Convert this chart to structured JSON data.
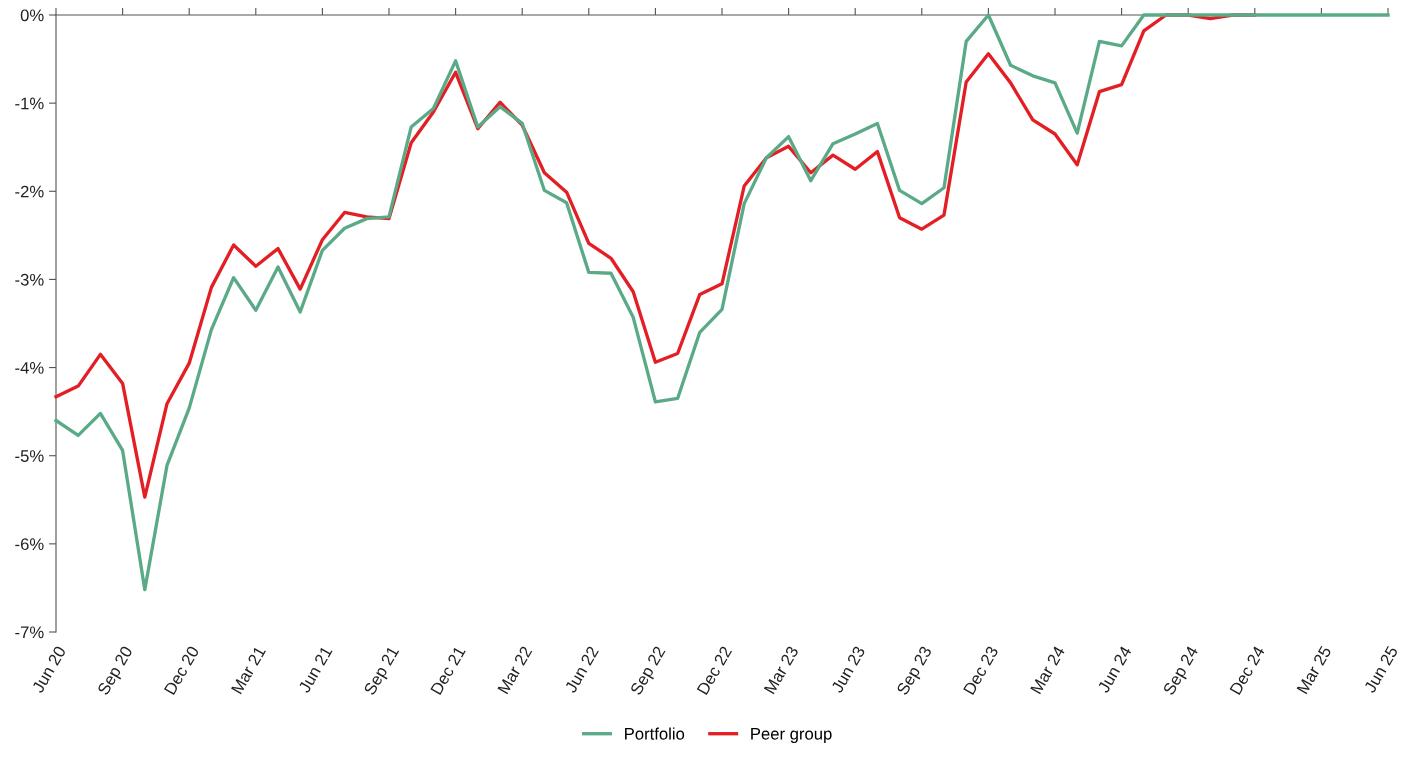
{
  "chart_data": {
    "type": "line",
    "x": [
      "2020-06",
      "2020-07",
      "2020-08",
      "2020-09",
      "2020-10",
      "2020-11",
      "2020-12",
      "2021-01",
      "2021-02",
      "2021-03",
      "2021-04",
      "2021-05",
      "2021-06",
      "2021-07",
      "2021-08",
      "2021-09",
      "2021-10",
      "2021-11",
      "2021-12",
      "2022-01",
      "2022-02",
      "2022-03",
      "2022-04",
      "2022-05",
      "2022-06",
      "2022-07",
      "2022-08",
      "2022-09",
      "2022-10",
      "2022-11",
      "2022-12",
      "2023-01",
      "2023-02",
      "2023-03",
      "2023-04",
      "2023-05",
      "2023-06",
      "2023-07",
      "2023-08",
      "2023-09",
      "2023-10",
      "2023-11",
      "2023-12",
      "2024-01",
      "2024-02",
      "2024-03",
      "2024-04",
      "2024-05",
      "2024-06",
      "2024-07",
      "2024-08",
      "2024-09",
      "2024-10",
      "2024-11",
      "2024-12",
      "2025-01",
      "2025-02",
      "2025-03",
      "2025-04",
      "2025-05",
      "2025-06"
    ],
    "series": [
      {
        "name": "Portfolio",
        "color": "#5aaa88",
        "values": [
          -4.6,
          -4.77,
          -4.52,
          -4.94,
          -6.52,
          -5.11,
          -4.46,
          -3.57,
          -2.98,
          -3.35,
          -2.86,
          -3.37,
          -2.67,
          -2.42,
          -2.31,
          -2.29,
          -1.27,
          -1.06,
          -0.52,
          -1.27,
          -1.04,
          -1.23,
          -1.99,
          -2.13,
          -2.92,
          -2.93,
          -3.43,
          -4.39,
          -4.35,
          -3.6,
          -3.34,
          -2.14,
          -1.62,
          -1.38,
          -1.88,
          -1.46,
          -1.35,
          -1.23,
          -1.99,
          -2.14,
          -1.96,
          -0.3,
          0,
          -0.57,
          -0.69,
          -0.77,
          -1.34,
          -0.3,
          -0.35,
          0,
          0,
          0,
          0,
          0,
          0,
          0,
          0,
          0,
          0,
          0,
          0
        ]
      },
      {
        "name": "Peer group",
        "color": "#e31e24",
        "values": [
          -4.33,
          -4.21,
          -3.85,
          -4.18,
          -5.47,
          -4.41,
          -3.95,
          -3.09,
          -2.61,
          -2.85,
          -2.65,
          -3.11,
          -2.55,
          -2.24,
          -2.29,
          -2.31,
          -1.45,
          -1.1,
          -0.65,
          -1.29,
          -0.99,
          -1.25,
          -1.79,
          -2.01,
          -2.59,
          -2.76,
          -3.14,
          -3.94,
          -3.84,
          -3.17,
          -3.05,
          -1.94,
          -1.62,
          -1.49,
          -1.79,
          -1.59,
          -1.75,
          -1.55,
          -2.3,
          -2.43,
          -2.27,
          -0.76,
          -0.44,
          -0.77,
          -1.19,
          -1.35,
          -1.7,
          -0.87,
          -0.79,
          -0.18,
          0,
          0,
          -0.04,
          0,
          0,
          null,
          null,
          null,
          null,
          null,
          null
        ]
      }
    ],
    "xlim": [
      "2020-06",
      "2025-06"
    ],
    "xticks": [
      {
        "value": "2020-06",
        "label": "Jun 20"
      },
      {
        "value": "2020-09",
        "label": "Sep 20"
      },
      {
        "value": "2020-12",
        "label": "Dec 20"
      },
      {
        "value": "2021-03",
        "label": "Mar 21"
      },
      {
        "value": "2021-06",
        "label": "Jun 21"
      },
      {
        "value": "2021-09",
        "label": "Sep 21"
      },
      {
        "value": "2021-12",
        "label": "Dec 21"
      },
      {
        "value": "2022-03",
        "label": "Mar 22"
      },
      {
        "value": "2022-06",
        "label": "Jun 22"
      },
      {
        "value": "2022-09",
        "label": "Sep 22"
      },
      {
        "value": "2022-12",
        "label": "Dec 22"
      },
      {
        "value": "2023-03",
        "label": "Mar 23"
      },
      {
        "value": "2023-06",
        "label": "Jun 23"
      },
      {
        "value": "2023-09",
        "label": "Sep 23"
      },
      {
        "value": "2023-12",
        "label": "Dec 23"
      },
      {
        "value": "2024-03",
        "label": "Mar 24"
      },
      {
        "value": "2024-06",
        "label": "Jun 24"
      },
      {
        "value": "2024-09",
        "label": "Sep 24"
      },
      {
        "value": "2024-12",
        "label": "Dec 24"
      },
      {
        "value": "2025-03",
        "label": "Mar 25"
      },
      {
        "value": "2025-06",
        "label": "Jun 25"
      }
    ],
    "ylim": [
      -7,
      0
    ],
    "yticks": [
      {
        "value": 0,
        "label": "0%"
      },
      {
        "value": -1,
        "label": "-1%"
      },
      {
        "value": -2,
        "label": "-2%"
      },
      {
        "value": -3,
        "label": "-3%"
      },
      {
        "value": -4,
        "label": "-4%"
      },
      {
        "value": -5,
        "label": "-5%"
      },
      {
        "value": -6,
        "label": "-6%"
      },
      {
        "value": -7,
        "label": "-7%"
      }
    ],
    "legend": "bottom",
    "grid": false,
    "marker": "none",
    "line_style": "solid"
  }
}
